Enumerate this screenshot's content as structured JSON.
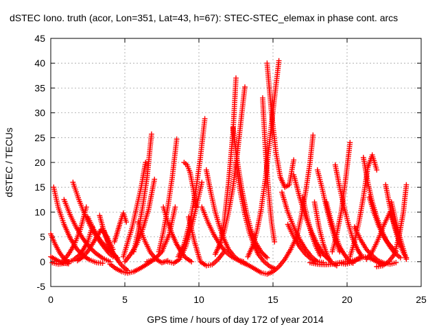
{
  "chart_data": {
    "type": "scatter",
    "title": "dSTEC Iono. truth (acor, Lon=351, Lat=43, h=67): STEC-STEC_elemax in phase cont. arcs",
    "xlabel": "GPS time / hours of day 172 of year 2014",
    "ylabel": "dSTEC  / TECUs",
    "xlim": [
      0,
      25
    ],
    "ylim": [
      -5,
      45
    ],
    "xticks": [
      0,
      5,
      10,
      15,
      20,
      25
    ],
    "yticks": [
      -5,
      0,
      5,
      10,
      15,
      20,
      25,
      30,
      35,
      40,
      45
    ],
    "grid": true,
    "marker": "+",
    "color": "#ff0000",
    "arcs": [
      {
        "x": [
          0.0,
          0.3,
          0.6,
          0.9,
          1.2
        ],
        "y": [
          5.6,
          3.5,
          1.8,
          0.6,
          0.0
        ]
      },
      {
        "x": [
          0.1,
          0.5,
          1.0,
          1.5,
          2.0,
          2.5,
          2.8
        ],
        "y": [
          -0.2,
          -0.5,
          -0.3,
          0.3,
          1.5,
          4.0,
          7.0
        ]
      },
      {
        "x": [
          0.0,
          0.3,
          0.6,
          0.9,
          1.2
        ],
        "y": [
          1.0,
          0.5,
          0.0,
          -0.3,
          -0.4
        ]
      },
      {
        "x": [
          0.2,
          0.5,
          0.9,
          1.3,
          1.7,
          2.1,
          2.6,
          3.1,
          3.5
        ],
        "y": [
          15.0,
          11.0,
          7.5,
          4.8,
          2.8,
          1.4,
          0.4,
          -0.2,
          -0.3
        ]
      },
      {
        "x": [
          0.9,
          1.3,
          1.7,
          2.1,
          2.5,
          3.0,
          3.5,
          4.0
        ],
        "y": [
          12.5,
          9.5,
          7.0,
          5.0,
          3.3,
          1.8,
          0.7,
          0.0
        ]
      },
      {
        "x": [
          1.5,
          1.9,
          2.3,
          2.7,
          3.1,
          3.5,
          3.9,
          4.2
        ],
        "y": [
          16.0,
          12.5,
          9.5,
          7.0,
          5.0,
          3.3,
          1.8,
          1.0
        ]
      },
      {
        "x": [
          0.8,
          1.2,
          1.6,
          2.0,
          2.4
        ],
        "y": [
          0.0,
          1.5,
          3.5,
          6.5,
          11.0
        ]
      },
      {
        "x": [
          1.8,
          2.2,
          2.6,
          3.0,
          3.4,
          3.8,
          4.2
        ],
        "y": [
          0.2,
          1.0,
          2.5,
          4.5,
          6.5,
          5.0,
          2.5
        ]
      },
      {
        "x": [
          2.5,
          2.9,
          3.3,
          3.7,
          4.1,
          4.5
        ],
        "y": [
          9.0,
          6.5,
          4.5,
          3.0,
          1.8,
          0.8
        ]
      },
      {
        "x": [
          3.3,
          3.6,
          3.9,
          4.2,
          4.5
        ],
        "y": [
          9.3,
          6.0,
          3.5,
          1.5,
          0.5
        ]
      },
      {
        "x": [
          3.6,
          4.0,
          4.4,
          4.8,
          5.2
        ],
        "y": [
          6.2,
          3.0,
          0.8,
          -0.8,
          -1.8
        ]
      },
      {
        "x": [
          4.0,
          4.4,
          4.8,
          5.2,
          5.6,
          6.0,
          6.5,
          7.0
        ],
        "y": [
          -0.5,
          -1.4,
          -2.0,
          -2.3,
          -2.0,
          -1.4,
          -0.5,
          0.5
        ]
      },
      {
        "x": [
          4.3,
          4.5,
          4.7,
          4.9,
          5.1
        ],
        "y": [
          4.0,
          6.0,
          8.0,
          9.8,
          8.0
        ]
      },
      {
        "x": [
          4.9,
          5.2,
          5.5,
          5.8,
          6.1,
          6.4
        ],
        "y": [
          1.0,
          4.0,
          7.0,
          11.0,
          15.0,
          20.0
        ]
      },
      {
        "x": [
          5.6,
          5.9,
          6.2,
          6.5,
          6.8
        ],
        "y": [
          2.0,
          6.0,
          11.0,
          17.0,
          25.7
        ]
      },
      {
        "x": [
          5.0,
          5.4,
          5.8,
          6.2,
          6.6,
          7.0
        ],
        "y": [
          0.0,
          1.5,
          3.5,
          6.5,
          10.5,
          16.6
        ]
      },
      {
        "x": [
          5.9,
          6.3,
          6.7,
          7.1,
          7.5,
          7.9
        ],
        "y": [
          8.0,
          4.5,
          2.0,
          0.5,
          -0.2,
          0.2
        ]
      },
      {
        "x": [
          6.5,
          7.0,
          7.5,
          8.0,
          8.4
        ],
        "y": [
          0.0,
          0.5,
          2.0,
          5.5,
          11.0
        ]
      },
      {
        "x": [
          7.3,
          7.6,
          7.9,
          8.2,
          8.5
        ],
        "y": [
          2.0,
          6.0,
          11.0,
          17.0,
          24.7
        ]
      },
      {
        "x": [
          7.6,
          7.9,
          8.2,
          8.5,
          8.8,
          9.1,
          9.5
        ],
        "y": [
          11.0,
          8.0,
          5.5,
          3.5,
          2.0,
          0.8,
          0.0
        ]
      },
      {
        "x": [
          7.9,
          8.3,
          8.7,
          9.1,
          9.5,
          9.9,
          10.2
        ],
        "y": [
          0.0,
          -0.3,
          0.5,
          3.0,
          7.0,
          12.0,
          16.0
        ]
      },
      {
        "x": [
          8.6,
          9.0,
          9.4,
          9.8,
          10.1,
          10.4
        ],
        "y": [
          1.0,
          3.5,
          8.0,
          14.5,
          21.0,
          28.8
        ]
      },
      {
        "x": [
          9.0,
          9.2,
          9.4,
          9.6,
          9.8
        ],
        "y": [
          20.0,
          19.5,
          18.0,
          15.0,
          11.0
        ]
      },
      {
        "x": [
          9.3,
          9.7,
          10.1,
          10.5,
          10.9,
          11.3,
          11.7
        ],
        "y": [
          9.0,
          4.0,
          0.0,
          -0.8,
          -0.6,
          0.5,
          2.0
        ]
      },
      {
        "x": [
          10.5,
          10.8,
          11.1,
          11.4,
          11.7,
          12.0,
          12.4,
          12.8,
          13.2
        ],
        "y": [
          18.5,
          14.0,
          10.0,
          7.0,
          4.5,
          2.5,
          1.0,
          0.0,
          -0.5
        ]
      },
      {
        "x": [
          10.2,
          10.6,
          11.0,
          11.4,
          11.8,
          12.2,
          12.6,
          13.0
        ],
        "y": [
          11.0,
          8.0,
          5.5,
          3.5,
          2.0,
          1.0,
          0.4,
          0.0
        ]
      },
      {
        "x": [
          11.1,
          11.4,
          11.7,
          12.0,
          12.3,
          12.6,
          12.9,
          13.1
        ],
        "y": [
          1.5,
          3.5,
          6.0,
          10.0,
          15.0,
          22.0,
          30.0,
          35.2
        ]
      },
      {
        "x": [
          11.4,
          11.7,
          12.0,
          12.3,
          12.5
        ],
        "y": [
          3.0,
          8.0,
          16.0,
          26.0,
          37.0
        ]
      },
      {
        "x": [
          12.3,
          12.6,
          12.9,
          13.2,
          13.5,
          13.8,
          14.2,
          14.6
        ],
        "y": [
          27.0,
          20.0,
          14.5,
          10.0,
          6.5,
          4.0,
          2.0,
          0.8
        ]
      },
      {
        "x": [
          12.5,
          12.8,
          13.1,
          13.4,
          13.7,
          14.0,
          14.4,
          14.8,
          15.2
        ],
        "y": [
          20.0,
          14.0,
          9.5,
          6.0,
          3.5,
          1.5,
          0.0,
          -1.0,
          -1.5
        ]
      },
      {
        "x": [
          13.3,
          13.6,
          13.9,
          14.2,
          14.5,
          14.8,
          15.1,
          15.4
        ],
        "y": [
          1.0,
          3.0,
          6.0,
          10.5,
          17.0,
          25.0,
          33.0,
          40.5
        ]
      },
      {
        "x": [
          13.0,
          13.4,
          13.8,
          14.2,
          14.6,
          15.0,
          15.4,
          15.8,
          16.2,
          16.6
        ],
        "y": [
          -0.2,
          -0.8,
          -1.5,
          -2.2,
          -2.5,
          -2.0,
          -1.0,
          0.5,
          2.5,
          5.0
        ]
      },
      {
        "x": [
          14.3,
          14.5,
          14.7,
          14.9,
          15.1
        ],
        "y": [
          33.0,
          22.0,
          14.0,
          8.0,
          4.0
        ]
      },
      {
        "x": [
          14.6,
          14.9,
          15.2,
          15.5,
          15.8,
          16.1,
          16.4
        ],
        "y": [
          40.0,
          30.0,
          22.0,
          17.0,
          15.0,
          15.5,
          20.5
        ]
      },
      {
        "x": [
          15.6,
          16.0,
          16.4,
          16.8,
          17.2,
          17.6,
          18.0
        ],
        "y": [
          14.0,
          10.0,
          7.0,
          4.5,
          2.5,
          1.0,
          0.0
        ]
      },
      {
        "x": [
          16.0,
          16.4,
          16.8,
          17.2,
          17.6,
          18.0,
          18.4
        ],
        "y": [
          7.5,
          5.0,
          3.0,
          1.5,
          0.5,
          0.0,
          -0.2
        ]
      },
      {
        "x": [
          16.4,
          16.8,
          17.2,
          17.6,
          18.0,
          18.4,
          18.8
        ],
        "y": [
          17.5,
          13.0,
          9.0,
          6.0,
          3.5,
          1.5,
          0.3
        ]
      },
      {
        "x": [
          16.6,
          16.9,
          17.2,
          17.5,
          17.7
        ],
        "y": [
          5.0,
          9.0,
          14.0,
          20.0,
          25.5
        ]
      },
      {
        "x": [
          17.0,
          17.3,
          17.6,
          17.9,
          18.2
        ],
        "y": [
          13.0,
          9.0,
          5.5,
          3.0,
          1.2
        ]
      },
      {
        "x": [
          17.8,
          18.1,
          18.4,
          18.7,
          19.0,
          19.3
        ],
        "y": [
          12.0,
          7.0,
          3.5,
          1.0,
          -0.3,
          -0.8
        ]
      },
      {
        "x": [
          18.0,
          18.3,
          18.6,
          18.9,
          19.2,
          19.5
        ],
        "y": [
          18.5,
          15.0,
          11.0,
          7.5,
          4.5,
          2.0
        ]
      },
      {
        "x": [
          18.6,
          18.9,
          19.2,
          19.5,
          19.8,
          20.1,
          20.4
        ],
        "y": [
          12.0,
          8.5,
          5.5,
          3.0,
          1.5,
          0.3,
          -0.3
        ]
      },
      {
        "x": [
          17.5,
          18.0,
          18.5,
          19.0,
          19.5,
          20.0,
          20.5,
          21.0
        ],
        "y": [
          -0.2,
          -0.5,
          -0.6,
          -0.5,
          -0.2,
          0.0,
          0.3,
          0.8
        ]
      },
      {
        "x": [
          19.0,
          19.3,
          19.6,
          19.9,
          20.2
        ],
        "y": [
          2.0,
          5.5,
          10.0,
          16.5,
          24.0
        ]
      },
      {
        "x": [
          19.2,
          19.5,
          19.8,
          20.1,
          20.4,
          20.7,
          21.0
        ],
        "y": [
          19.5,
          15.0,
          11.0,
          7.5,
          4.5,
          2.5,
          1.0
        ]
      },
      {
        "x": [
          19.5,
          19.9,
          20.3,
          20.7,
          21.1,
          21.5,
          21.9,
          22.3
        ],
        "y": [
          -0.3,
          -0.5,
          -0.2,
          0.5,
          1.0,
          0.8,
          0.2,
          -0.5
        ]
      },
      {
        "x": [
          20.5,
          20.9,
          21.3,
          21.7,
          22.1,
          22.5,
          22.9,
          23.3
        ],
        "y": [
          7.0,
          4.5,
          2.5,
          1.2,
          0.2,
          -0.3,
          -0.5,
          -0.2
        ]
      },
      {
        "x": [
          20.2,
          20.5,
          20.8,
          21.1,
          21.4,
          21.7,
          22.0
        ],
        "y": [
          1.0,
          4.0,
          8.0,
          13.0,
          19.0,
          21.5,
          18.5
        ]
      },
      {
        "x": [
          21.1,
          21.4,
          21.7,
          22.0,
          22.3,
          22.6,
          22.9,
          23.2,
          23.6
        ],
        "y": [
          21.0,
          16.0,
          12.0,
          9.0,
          6.5,
          4.5,
          3.0,
          1.8,
          0.8
        ]
      },
      {
        "x": [
          21.3,
          21.7,
          22.1,
          22.5,
          22.9,
          23.3,
          23.7
        ],
        "y": [
          0.5,
          2.0,
          4.5,
          7.5,
          10.0,
          6.5,
          3.0
        ]
      },
      {
        "x": [
          21.5,
          21.8,
          22.1,
          22.4,
          22.7,
          23.0,
          23.3
        ],
        "y": [
          13.0,
          10.0,
          7.5,
          5.5,
          4.0,
          3.0,
          2.0
        ]
      },
      {
        "x": [
          22.0,
          22.4,
          22.8,
          23.2,
          23.5,
          23.8,
          24.0
        ],
        "y": [
          -1.0,
          -0.8,
          0.0,
          1.5,
          5.0,
          10.0,
          15.5
        ]
      },
      {
        "x": [
          22.6,
          22.9,
          23.2,
          23.5,
          23.8,
          24.0
        ],
        "y": [
          15.5,
          11.0,
          7.0,
          4.0,
          1.8,
          0.8
        ]
      },
      {
        "x": [
          23.0,
          23.3,
          23.6,
          23.9,
          24.0
        ],
        "y": [
          12.0,
          8.0,
          4.5,
          1.5,
          0.5
        ]
      }
    ]
  }
}
